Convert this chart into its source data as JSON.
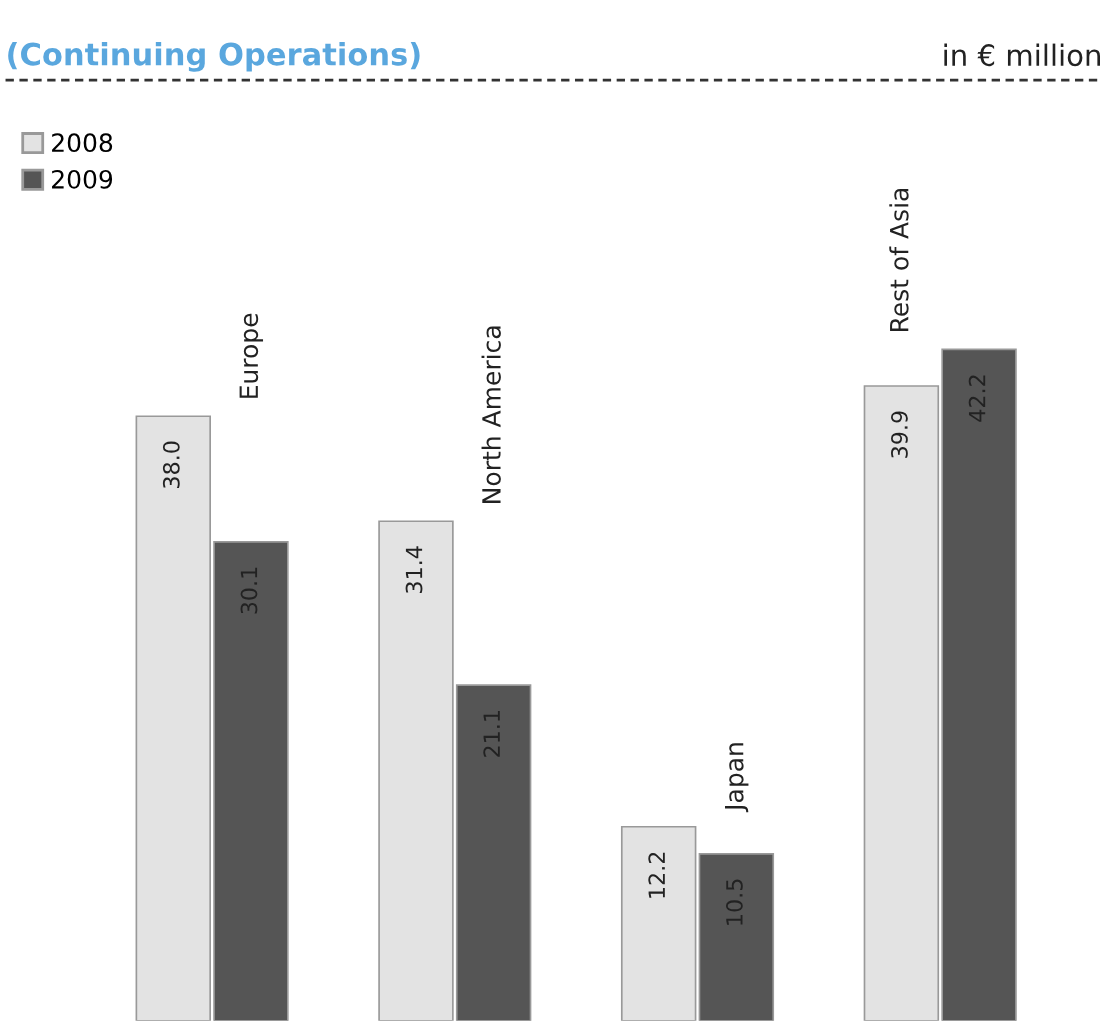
{
  "chart_data": {
    "type": "bar",
    "title": "(Continuing Operations)",
    "annotations": [
      "in € million"
    ],
    "categories": [
      "Europe",
      "North America",
      "Japan",
      "Rest of Asia"
    ],
    "series": [
      {
        "name": "2008",
        "color": "#e3e3e3",
        "values": [
          38.0,
          31.4,
          12.2,
          39.9
        ],
        "value_labels": [
          "38.0",
          "31.4",
          "12.2",
          "39.9"
        ]
      },
      {
        "name": "2009",
        "color": "#555555",
        "values": [
          30.1,
          21.1,
          10.5,
          42.2
        ],
        "value_labels": [
          "30.1",
          "21.1",
          "10.5",
          "42.2"
        ]
      }
    ],
    "ylim": [
      0,
      59
    ],
    "legend": "top left"
  }
}
